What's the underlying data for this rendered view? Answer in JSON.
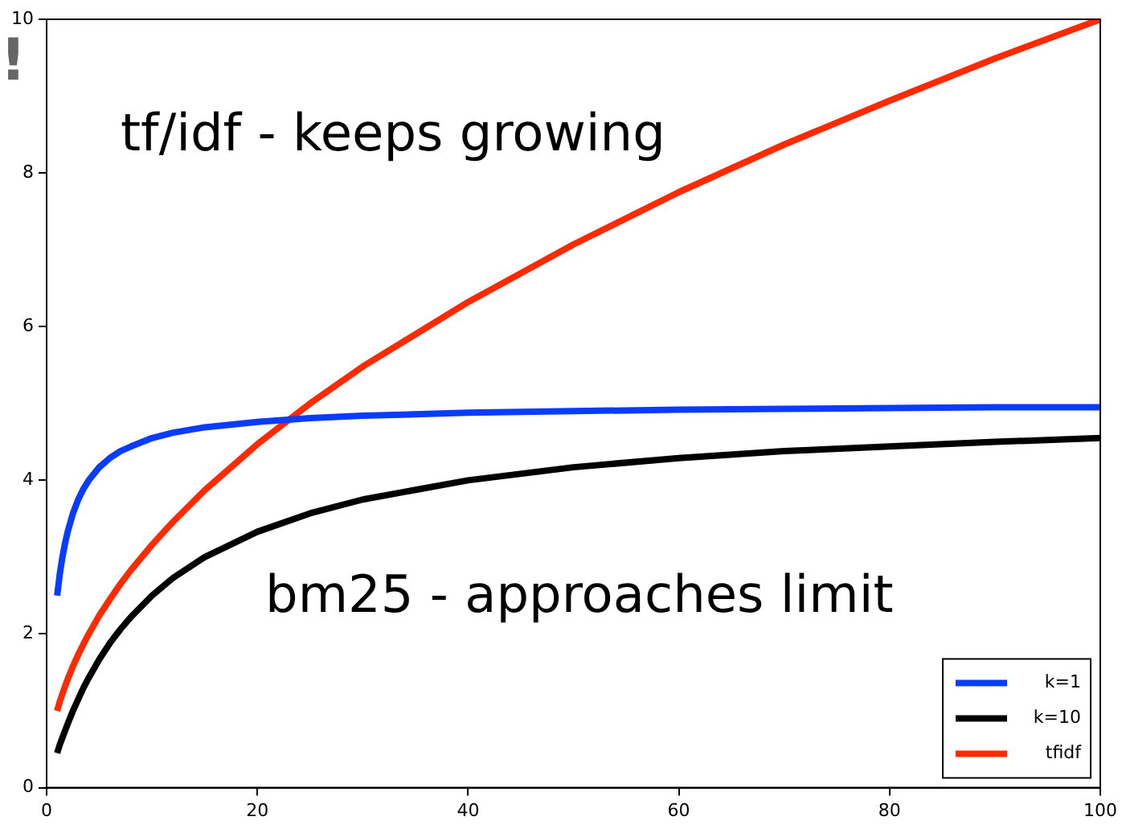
{
  "chart_data": {
    "type": "line",
    "x": [
      1,
      1.25,
      1.5,
      1.75,
      2,
      2.5,
      3,
      3.5,
      4,
      5,
      6,
      7,
      8,
      10,
      12,
      15,
      20,
      25,
      30,
      40,
      50,
      60,
      70,
      80,
      90,
      100
    ],
    "series": [
      {
        "name": "k=1",
        "color": "#0a3cff",
        "values": [
          2.5,
          2.78,
          3,
          3.18,
          3.33,
          3.57,
          3.75,
          3.89,
          4,
          4.17,
          4.29,
          4.38,
          4.44,
          4.55,
          4.62,
          4.69,
          4.76,
          4.81,
          4.84,
          4.88,
          4.9,
          4.92,
          4.93,
          4.94,
          4.95,
          4.95
        ]
      },
      {
        "name": "k=10",
        "color": "#000000",
        "values": [
          0.45,
          0.56,
          0.65,
          0.74,
          0.83,
          1,
          1.15,
          1.3,
          1.43,
          1.67,
          1.88,
          2.06,
          2.22,
          2.5,
          2.73,
          3,
          3.33,
          3.57,
          3.75,
          4,
          4.17,
          4.29,
          4.38,
          4.44,
          4.5,
          4.55
        ]
      },
      {
        "name": "tfidf",
        "color": "#ff2a00",
        "values": [
          1,
          1.12,
          1.22,
          1.32,
          1.41,
          1.58,
          1.73,
          1.87,
          2,
          2.24,
          2.45,
          2.65,
          2.83,
          3.16,
          3.46,
          3.87,
          4.47,
          5,
          5.48,
          6.32,
          7.07,
          7.75,
          8.37,
          8.94,
          9.49,
          10
        ]
      }
    ],
    "xlim": [
      0,
      100
    ],
    "xticks": [
      0,
      20,
      40,
      60,
      80,
      100
    ],
    "ylim": [
      0,
      10
    ],
    "yticks": [
      0,
      2,
      4,
      6,
      8,
      10
    ],
    "grid": false,
    "legend": "bottom right",
    "marker": "none",
    "line_style": "solid",
    "annotations": [
      "tf/idf - keeps growing",
      "bm25 - approaches limit",
      "!"
    ]
  }
}
